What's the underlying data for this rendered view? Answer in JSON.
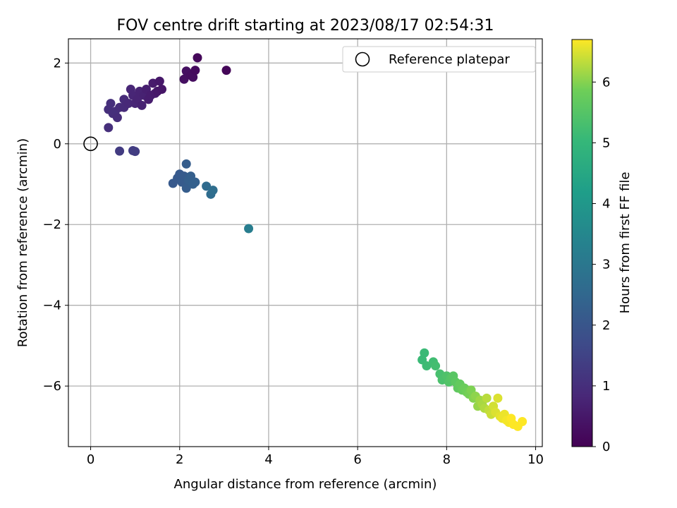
{
  "chart_data": {
    "type": "scatter",
    "title": "FOV centre drift starting at 2023/08/17 02:54:31",
    "xlabel": "Angular distance from reference (arcmin)",
    "ylabel": "Rotation from reference (arcmin)",
    "xlim": [
      -0.5,
      10.15
    ],
    "ylim": [
      -7.5,
      2.6
    ],
    "xticks": [
      0,
      2,
      4,
      6,
      8,
      10
    ],
    "yticks": [
      2,
      0,
      -2,
      -4,
      -6
    ],
    "ytick_labels": [
      "2",
      "0",
      "−2",
      "−4",
      "−6"
    ],
    "grid": true,
    "legend": {
      "position": "top-right",
      "entries": [
        "Reference platepar"
      ]
    },
    "reference_point": {
      "x": 0,
      "y": 0
    },
    "colorbar": {
      "label": "Hours from first FF file",
      "colormap": "viridis",
      "range": [
        0,
        6.7
      ],
      "ticks": [
        0,
        1,
        2,
        3,
        4,
        5,
        6
      ]
    },
    "points": [
      [
        0.4,
        0.4,
        1.0
      ],
      [
        0.4,
        0.85,
        1.0
      ],
      [
        0.45,
        1.0,
        1.0
      ],
      [
        0.5,
        0.75,
        1.0
      ],
      [
        0.55,
        0.8,
        1.0
      ],
      [
        0.6,
        0.65,
        0.95
      ],
      [
        0.65,
        0.9,
        0.95
      ],
      [
        0.75,
        0.9,
        0.9
      ],
      [
        0.75,
        1.1,
        0.9
      ],
      [
        0.85,
        1.0,
        0.85
      ],
      [
        0.9,
        1.35,
        0.8
      ],
      [
        0.95,
        1.2,
        0.8
      ],
      [
        1.0,
        1.0,
        0.8
      ],
      [
        1.05,
        1.1,
        0.75
      ],
      [
        1.1,
        1.3,
        0.75
      ],
      [
        1.15,
        0.95,
        0.7
      ],
      [
        1.2,
        1.2,
        0.7
      ],
      [
        1.25,
        1.35,
        0.65
      ],
      [
        1.3,
        1.1,
        0.6
      ],
      [
        1.35,
        1.2,
        0.6
      ],
      [
        1.4,
        1.5,
        0.55
      ],
      [
        1.45,
        1.25,
        0.55
      ],
      [
        1.5,
        1.3,
        0.5
      ],
      [
        1.55,
        1.55,
        0.5
      ],
      [
        1.6,
        1.35,
        0.45
      ],
      [
        2.1,
        1.6,
        0.3
      ],
      [
        2.15,
        1.8,
        0.3
      ],
      [
        2.25,
        1.7,
        0.25
      ],
      [
        2.3,
        1.65,
        0.25
      ],
      [
        2.35,
        1.82,
        0.2
      ],
      [
        2.4,
        2.13,
        0.15
      ],
      [
        3.05,
        1.82,
        0.1
      ],
      [
        0.65,
        -0.18,
        1.3
      ],
      [
        0.95,
        -0.17,
        1.35
      ],
      [
        1.0,
        -0.19,
        1.35
      ],
      [
        1.85,
        -0.98,
        2.1
      ],
      [
        1.95,
        -0.85,
        2.1
      ],
      [
        2.0,
        -0.75,
        2.1
      ],
      [
        2.05,
        -0.95,
        2.15
      ],
      [
        2.1,
        -0.8,
        2.15
      ],
      [
        2.15,
        -1.1,
        2.2
      ],
      [
        2.15,
        -0.5,
        2.2
      ],
      [
        2.2,
        -0.9,
        2.25
      ],
      [
        2.25,
        -0.8,
        2.25
      ],
      [
        2.3,
        -1.0,
        2.3
      ],
      [
        2.35,
        -0.95,
        2.3
      ],
      [
        2.6,
        -1.05,
        2.6
      ],
      [
        2.7,
        -1.25,
        2.65
      ],
      [
        2.75,
        -1.15,
        2.7
      ],
      [
        3.55,
        -2.1,
        3.2
      ],
      [
        7.45,
        -5.35,
        5.1
      ],
      [
        7.5,
        -5.18,
        5.1
      ],
      [
        7.55,
        -5.5,
        5.15
      ],
      [
        7.7,
        -5.4,
        5.2
      ],
      [
        7.75,
        -5.5,
        5.25
      ],
      [
        7.85,
        -5.7,
        5.3
      ],
      [
        7.9,
        -5.85,
        5.35
      ],
      [
        8.0,
        -5.75,
        5.4
      ],
      [
        8.05,
        -5.9,
        5.45
      ],
      [
        8.1,
        -5.8,
        5.5
      ],
      [
        8.15,
        -5.75,
        5.55
      ],
      [
        8.2,
        -5.9,
        5.6
      ],
      [
        8.25,
        -6.05,
        5.65
      ],
      [
        8.3,
        -5.95,
        5.7
      ],
      [
        8.35,
        -6.1,
        5.75
      ],
      [
        8.4,
        -6.05,
        5.8
      ],
      [
        8.45,
        -6.15,
        5.85
      ],
      [
        8.5,
        -6.2,
        5.9
      ],
      [
        8.55,
        -6.1,
        5.95
      ],
      [
        8.6,
        -6.3,
        6.0
      ],
      [
        8.65,
        -6.25,
        6.05
      ],
      [
        8.7,
        -6.5,
        6.1
      ],
      [
        8.75,
        -6.35,
        6.15
      ],
      [
        8.8,
        -6.45,
        6.2
      ],
      [
        8.85,
        -6.55,
        6.25
      ],
      [
        8.9,
        -6.3,
        6.3
      ],
      [
        8.95,
        -6.6,
        6.35
      ],
      [
        9.0,
        -6.7,
        6.4
      ],
      [
        9.05,
        -6.5,
        6.45
      ],
      [
        9.1,
        -6.65,
        6.5
      ],
      [
        9.15,
        -6.3,
        6.5
      ],
      [
        9.2,
        -6.75,
        6.55
      ],
      [
        9.25,
        -6.8,
        6.6
      ],
      [
        9.3,
        -6.7,
        6.6
      ],
      [
        9.35,
        -6.85,
        6.65
      ],
      [
        9.4,
        -6.9,
        6.65
      ],
      [
        9.45,
        -6.8,
        6.7
      ],
      [
        9.5,
        -6.95,
        6.7
      ],
      [
        9.6,
        -7.0,
        6.7
      ],
      [
        9.7,
        -6.88,
        6.7
      ]
    ]
  }
}
